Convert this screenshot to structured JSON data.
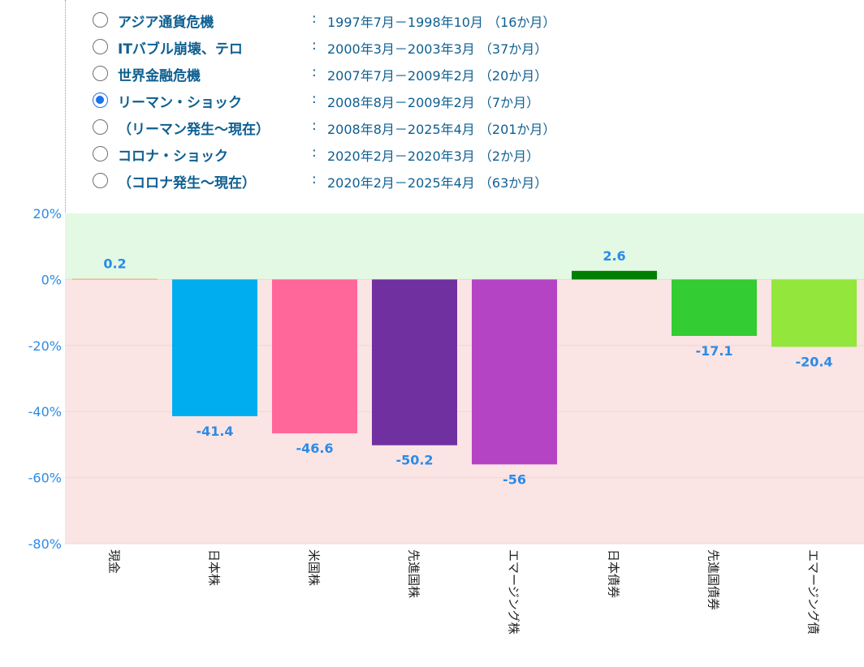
{
  "crisis_selector": [
    {
      "name": "アジア通貨危機",
      "separator": ":",
      "period": "1997年7月－1998年10月 （16か月）",
      "selected": false
    },
    {
      "name": "ITバブル崩壊、テロ",
      "separator": ":",
      "period": "2000年3月－2003年3月 （37か月）",
      "selected": false
    },
    {
      "name": "世界金融危機",
      "separator": ":",
      "period": "2007年7月－2009年2月 （20か月）",
      "selected": false
    },
    {
      "name": "リーマン・ショック",
      "separator": ":",
      "period": "2008年8月－2009年2月 （7か月）",
      "selected": true
    },
    {
      "name": "（リーマン発生～現在）",
      "separator": ":",
      "period": "2008年8月－2025年4月 （201か月）",
      "selected": false
    },
    {
      "name": "コロナ・ショック",
      "separator": ":",
      "period": "2020年2月－2020年3月 （2か月）",
      "selected": false
    },
    {
      "name": "（コロナ発生～現在）",
      "separator": ":",
      "period": "2020年2月－2025年4月 （63か月）",
      "selected": false
    }
  ],
  "chart_data": {
    "type": "bar",
    "categories": [
      "現金",
      "日本株",
      "米国株",
      "先進国株",
      "エマージング株",
      "日本債券",
      "先進国債券",
      "エマージング債"
    ],
    "values": [
      0.2,
      -41.4,
      -46.6,
      -50.2,
      -56,
      2.6,
      -17.1,
      -20.4
    ],
    "data_labels": [
      "0.2",
      "-41.4",
      "-46.6",
      "-50.2",
      "-56",
      "2.6",
      "-17.1",
      "-20.4"
    ],
    "yticks": [
      20,
      0,
      -20,
      -40,
      -60,
      -80
    ],
    "ytick_labels": [
      "20%",
      "0%",
      "-20%",
      "-40%",
      "-60%",
      "-80%"
    ],
    "ylim": [
      -80,
      20
    ],
    "grid": true,
    "title": "",
    "xlabel": "",
    "ylabel": ""
  },
  "colors": {
    "bars": [
      "#f4a460",
      "#00aeef",
      "#ff6699",
      "#7030a0",
      "#b444c4",
      "#008000",
      "#33cc33",
      "#92e63c"
    ],
    "positive_zone": "#e3f9e3",
    "negative_zone": "#fbe4e4",
    "label_color": "#2b8be8",
    "radio_selected": "#1a73e8"
  }
}
